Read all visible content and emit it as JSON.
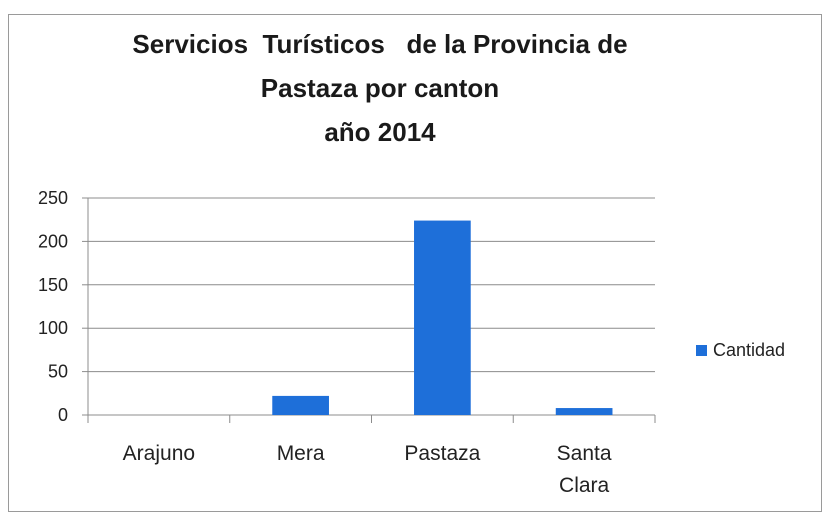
{
  "chart_data": {
    "type": "bar",
    "title_lines": [
      "Servicios  Turísticos   de la Provincia de",
      "Pastaza por canton",
      "año 2014"
    ],
    "categories": [
      [
        "Arajuno"
      ],
      [
        "Mera"
      ],
      [
        "Pastaza"
      ],
      [
        "Santa",
        "Clara"
      ]
    ],
    "series": [
      {
        "name": "Cantidad",
        "values": [
          0,
          22,
          224,
          8
        ],
        "color": "#1e6fd9"
      }
    ],
    "ylim": [
      0,
      250
    ],
    "yticks": [
      0,
      50,
      100,
      150,
      200,
      250
    ],
    "grid": true,
    "legend_position": "right"
  }
}
